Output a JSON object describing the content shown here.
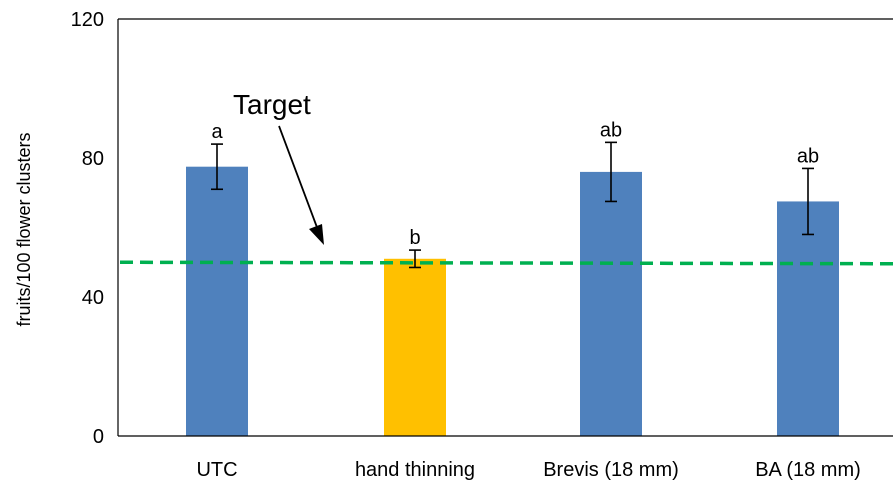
{
  "chart_data": {
    "type": "bar",
    "categories": [
      "UTC",
      "hand thinning",
      "Brevis (18 mm)",
      "BA (18 mm)"
    ],
    "values": [
      77.5,
      51,
      76,
      67.5
    ],
    "errors": [
      6.5,
      2.5,
      8.5,
      9.5
    ],
    "significance": [
      "a",
      "b",
      "ab",
      "ab"
    ],
    "bar_colors": [
      "#4f81bd",
      "#ffc000",
      "#4f81bd",
      "#4f81bd"
    ],
    "ylabel": "fruits/100 flower clusters",
    "ylim": [
      0,
      120
    ],
    "yticks": [
      0,
      40,
      80,
      120
    ],
    "grid": false,
    "target": {
      "label": "Target",
      "value": 50,
      "color": "#00b050",
      "style": "dashed"
    }
  }
}
